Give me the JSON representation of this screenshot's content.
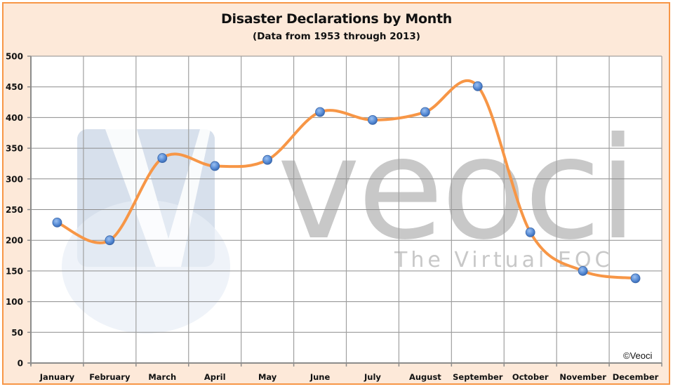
{
  "chart_data": {
    "type": "line",
    "title": "Disaster Declarations by Month",
    "subtitle": "(Data from 1953 through 2013)",
    "xlabel": "",
    "ylabel": "",
    "categories": [
      "January",
      "February",
      "March",
      "April",
      "May",
      "June",
      "July",
      "August",
      "September",
      "October",
      "November",
      "December"
    ],
    "series": [
      {
        "name": "Disaster Declarations",
        "values": [
          229,
          200,
          334,
          321,
          331,
          409,
          396,
          409,
          451,
          213,
          150,
          138
        ],
        "line_color": "#f79646",
        "marker_color": "#4f81bd",
        "smoothed": true
      }
    ],
    "ylim": [
      0,
      500
    ],
    "yticks": [
      0,
      50,
      100,
      150,
      200,
      250,
      300,
      350,
      400,
      450,
      500
    ],
    "grid": true,
    "legend": "none"
  },
  "watermark": {
    "brand": "veoci",
    "tagline": "The Virtual EOC",
    "logo_letter": "V"
  },
  "copyright": "©Veoci",
  "colors": {
    "background": "#fde9d9",
    "border": "#f79646",
    "plot_bg": "#ffffff",
    "grid": "#8c8c8c"
  }
}
